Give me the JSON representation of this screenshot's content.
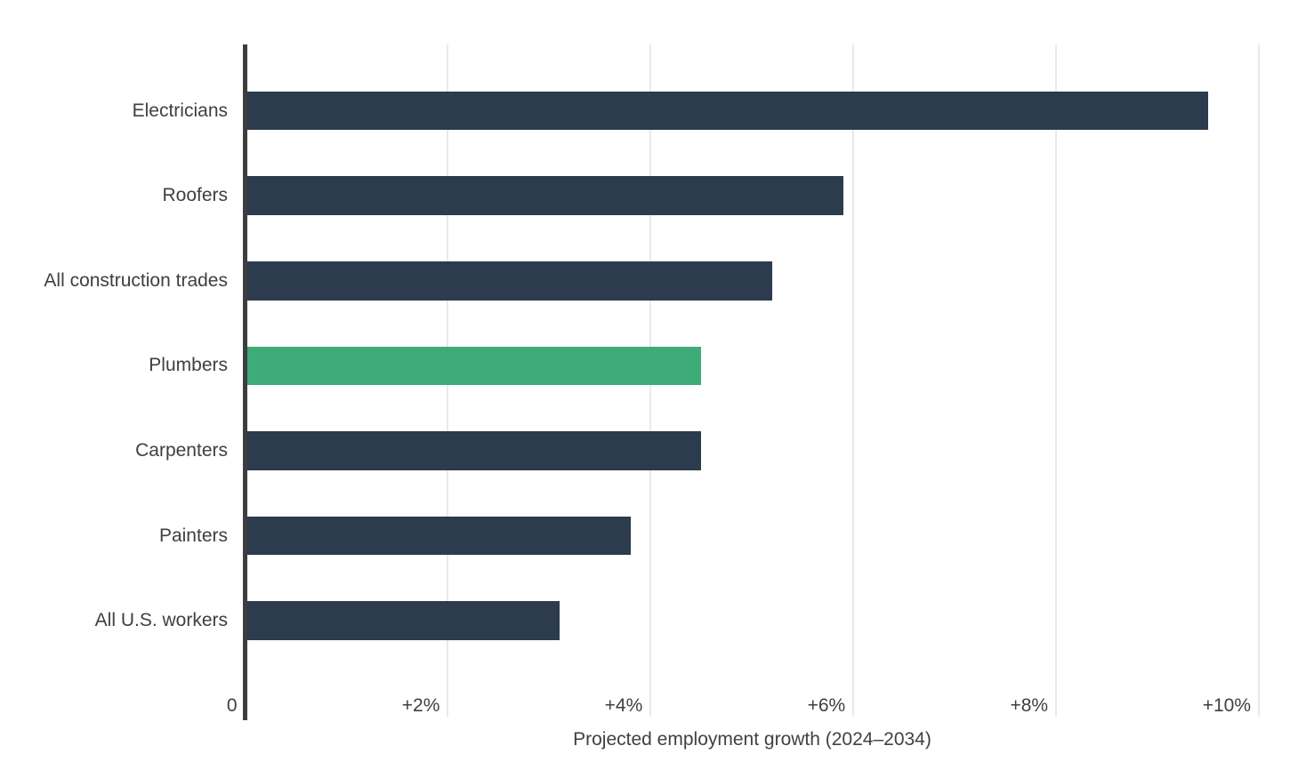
{
  "chart_data": {
    "type": "bar",
    "orientation": "horizontal",
    "title": "",
    "xlabel": "Projected employment growth (2024–2034)",
    "ylabel": "",
    "xlim": [
      0,
      10
    ],
    "grid": true,
    "categories": [
      "Electricians",
      "Roofers",
      "All construction trades",
      "Plumbers",
      "Carpenters",
      "Painters",
      "All U.S. workers"
    ],
    "values": [
      9.5,
      5.9,
      5.2,
      4.5,
      4.5,
      3.8,
      3.1
    ],
    "highlighted_category": "Plumbers",
    "x_ticks": [
      {
        "value": 0,
        "label": "0"
      },
      {
        "value": 2,
        "label": "+2%"
      },
      {
        "value": 4,
        "label": "+4%"
      },
      {
        "value": 6,
        "label": "+6%"
      },
      {
        "value": 8,
        "label": "+8%"
      },
      {
        "value": 10,
        "label": "+10%"
      }
    ],
    "colors": {
      "bar": "#2c3b4e",
      "highlight": "#3dac78",
      "axis_line": "#3d3d3d",
      "gridline": "#e9e9e9",
      "text": "#3f3f3f",
      "background": "#ffffff"
    }
  }
}
